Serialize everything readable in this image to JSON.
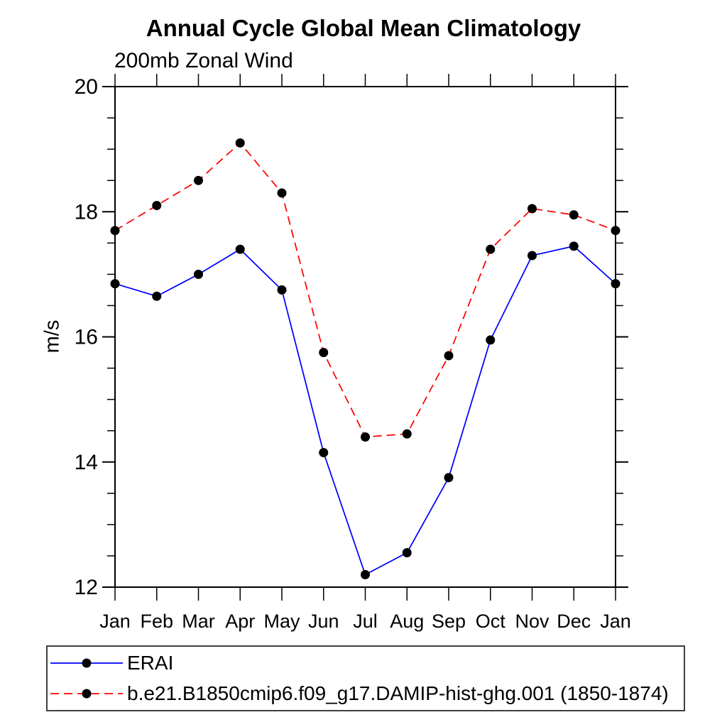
{
  "chart_data": {
    "type": "line",
    "title": "Annual Cycle Global Mean Climatology",
    "subtitle": "200mb Zonal Wind",
    "ylabel": "m/s",
    "xlabel": "",
    "categories": [
      "Jan",
      "Feb",
      "Mar",
      "Apr",
      "May",
      "Jun",
      "Jul",
      "Aug",
      "Sep",
      "Oct",
      "Nov",
      "Dec",
      "Jan"
    ],
    "ylim": [
      12,
      20
    ],
    "yticks_major": [
      12,
      14,
      16,
      18,
      20
    ],
    "ytick_minor_step": 0.5,
    "grid": false,
    "legend_position": "bottom-left-box",
    "axis_color": "#000000",
    "marker": "filled-circle",
    "series": [
      {
        "name": "ERAI",
        "color": "#0000ff",
        "line_style": "solid",
        "marker_color": "#000000",
        "values": [
          16.85,
          16.65,
          17.0,
          17.4,
          16.75,
          14.15,
          12.2,
          12.55,
          13.75,
          15.95,
          17.3,
          17.45,
          16.85
        ]
      },
      {
        "name": "b.e21.B1850cmip6.f09_g17.DAMIP-hist-ghg.001 (1850-1874)",
        "color": "#ff0000",
        "line_style": "dashed",
        "marker_color": "#000000",
        "values": [
          17.7,
          18.1,
          18.5,
          19.1,
          18.3,
          15.75,
          14.4,
          14.45,
          15.7,
          17.4,
          18.05,
          17.95,
          17.7
        ]
      }
    ]
  }
}
